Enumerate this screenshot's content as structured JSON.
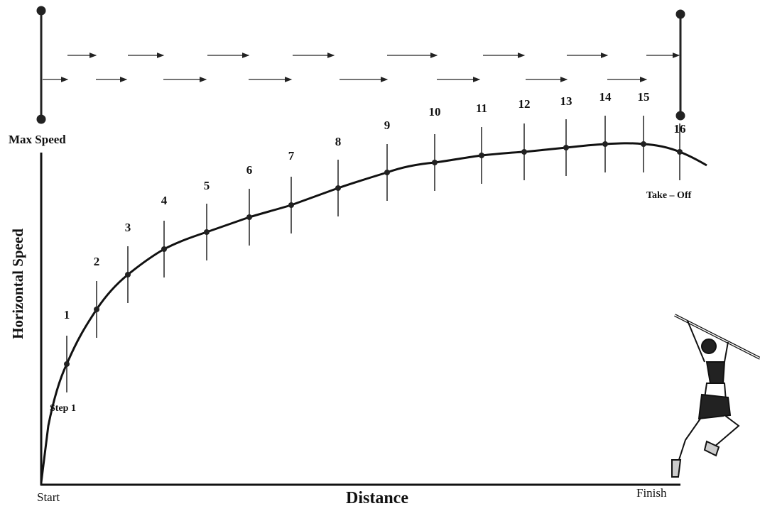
{
  "axis": {
    "top_label": "Max Speed",
    "y_label": "Horizontal Speed",
    "x_label": "Distance",
    "start_label": "Start",
    "finish_label": "Finish"
  },
  "steps": [
    "1",
    "2",
    "3",
    "4",
    "5",
    "6",
    "7",
    "8",
    "9",
    "10",
    "11",
    "12",
    "13",
    "14",
    "15",
    "16"
  ],
  "annotations": {
    "first_step": "Step 1",
    "last_step": "Take – Off"
  }
}
